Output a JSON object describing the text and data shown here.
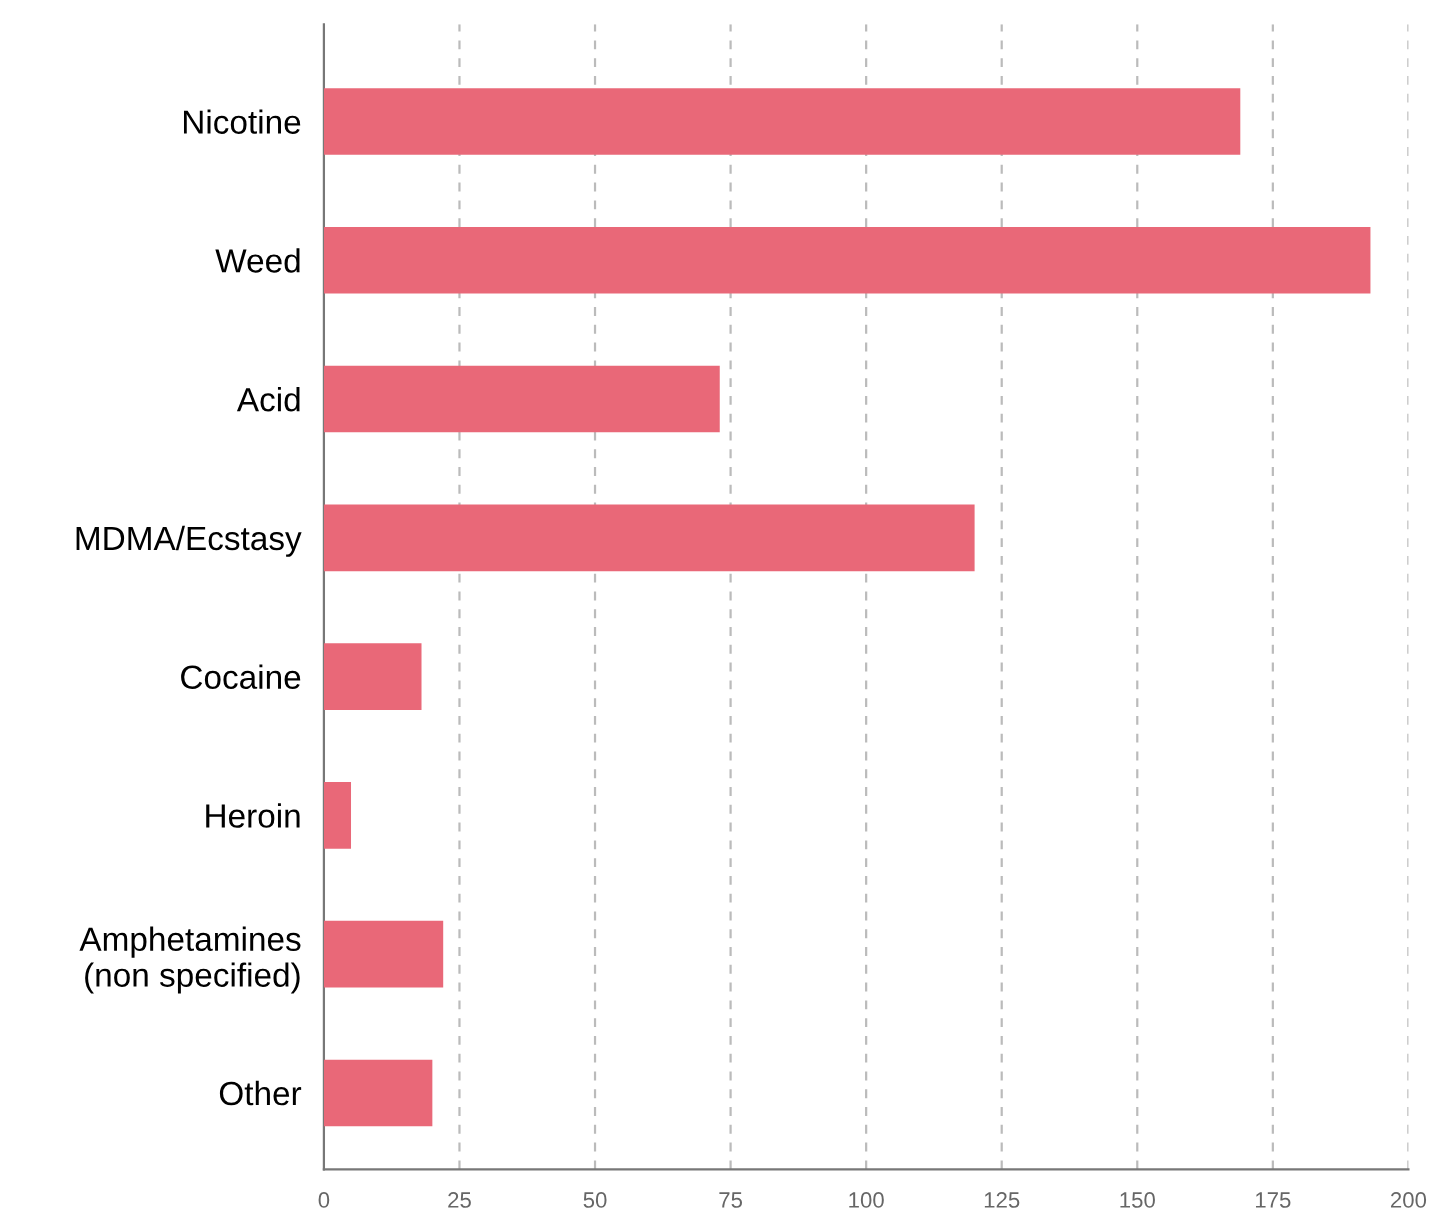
{
  "chart_data": {
    "type": "bar",
    "orientation": "horizontal",
    "categories": [
      "Nicotine",
      "Weed",
      "Acid",
      "MDMA/Ecstasy",
      "Cocaine",
      "Heroin",
      "Amphetamines\n(non specified)",
      "Other"
    ],
    "values": [
      169,
      193,
      73,
      120,
      18,
      5,
      22,
      20
    ],
    "color": "#e96878",
    "xlim": [
      0,
      200
    ],
    "xticks": [
      0,
      25,
      50,
      75,
      100,
      125,
      150,
      175,
      200
    ],
    "grid": "x"
  }
}
